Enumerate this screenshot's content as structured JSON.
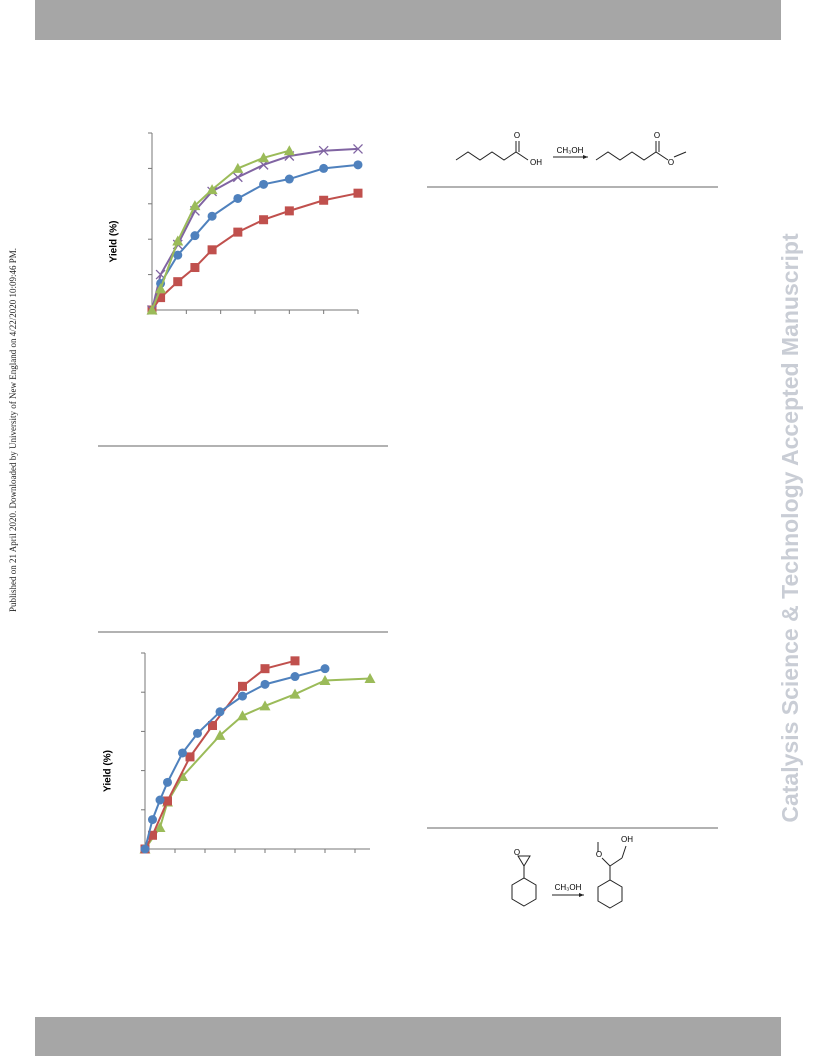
{
  "sidebar": "Published on 21 April 2020. Downloaded by University of New England on 4/22/2020 10:09:46 PM.",
  "watermark": "Catalysis Science & Technology Accepted Manuscript",
  "scheme1": {
    "carbonyl_o": "O",
    "acid_oh": "OH",
    "reagent": "CH₃OH",
    "ester_carbonyl_o": "O",
    "ester_o": "O"
  },
  "scheme2": {
    "epoxide_o": "O",
    "reagent": "CH₃OH",
    "ether_o": "O",
    "product_oh": "OH"
  },
  "chart_data": [
    {
      "type": "line",
      "y_label": "Yield (%)",
      "xlim": [
        0,
        6
      ],
      "xticks": [
        0,
        1,
        2,
        3,
        4,
        5,
        6
      ],
      "ylim": [
        0,
        100
      ],
      "yticks": [
        0,
        20,
        40,
        60,
        80,
        100
      ],
      "series": [
        {
          "color": "#c0504d",
          "marker": "square",
          "x": [
            0,
            0.25,
            0.75,
            1.25,
            1.75,
            2.5,
            3.25,
            4,
            5,
            6
          ],
          "values": [
            0,
            7,
            16,
            24,
            34,
            44,
            51,
            56,
            62,
            66
          ]
        },
        {
          "color": "#8064a2",
          "marker": "x",
          "x": [
            0,
            0.25,
            0.75,
            1.25,
            1.75,
            2.5,
            3.25,
            4,
            5,
            6
          ],
          "values": [
            0,
            20,
            37,
            56,
            67,
            75,
            82,
            87,
            90,
            91
          ]
        },
        {
          "color": "#4f81bd",
          "marker": "circle",
          "x": [
            0.25,
            0.75,
            1.25,
            1.75,
            2.5,
            3.25,
            4,
            5,
            6
          ],
          "values": [
            15,
            31,
            42,
            53,
            63,
            71,
            74,
            80,
            82
          ]
        },
        {
          "color": "#9bbb59",
          "marker": "triangle",
          "x": [
            0,
            0.25,
            0.75,
            1.25,
            1.75,
            2.5,
            3.25,
            4
          ],
          "values": [
            0,
            12,
            39,
            59,
            68,
            80,
            86,
            90
          ]
        }
      ]
    },
    {
      "type": "line",
      "y_label": "Yield (%)",
      "xlim": [
        0,
        7.5
      ],
      "xticks": [
        0,
        1,
        2,
        3,
        4,
        5,
        6,
        7
      ],
      "ylim": [
        0,
        100
      ],
      "yticks": [
        0,
        20,
        40,
        60,
        80,
        100
      ],
      "series": [
        {
          "color": "#9bbb59",
          "marker": "triangle",
          "x": [
            0,
            0.5,
            0.75,
            1.25,
            2.5,
            3.25,
            4,
            5,
            6,
            7.5
          ],
          "values": [
            0,
            11,
            24,
            37,
            58,
            68,
            73,
            79,
            86,
            87
          ]
        },
        {
          "color": "#c0504d",
          "marker": "square",
          "x": [
            0,
            0.25,
            0.75,
            1.5,
            2.25,
            3.25,
            4,
            5
          ],
          "values": [
            0,
            7,
            24.5,
            47,
            63,
            83,
            92,
            96
          ]
        },
        {
          "color": "#4f81bd",
          "marker": "circle",
          "x": [
            0,
            0.25,
            0.5,
            0.75,
            1.25,
            1.75,
            2.5,
            3.25,
            4,
            5,
            6
          ],
          "values": [
            0,
            15,
            25,
            34,
            49,
            59,
            70,
            78,
            84,
            88,
            92
          ]
        }
      ]
    }
  ]
}
